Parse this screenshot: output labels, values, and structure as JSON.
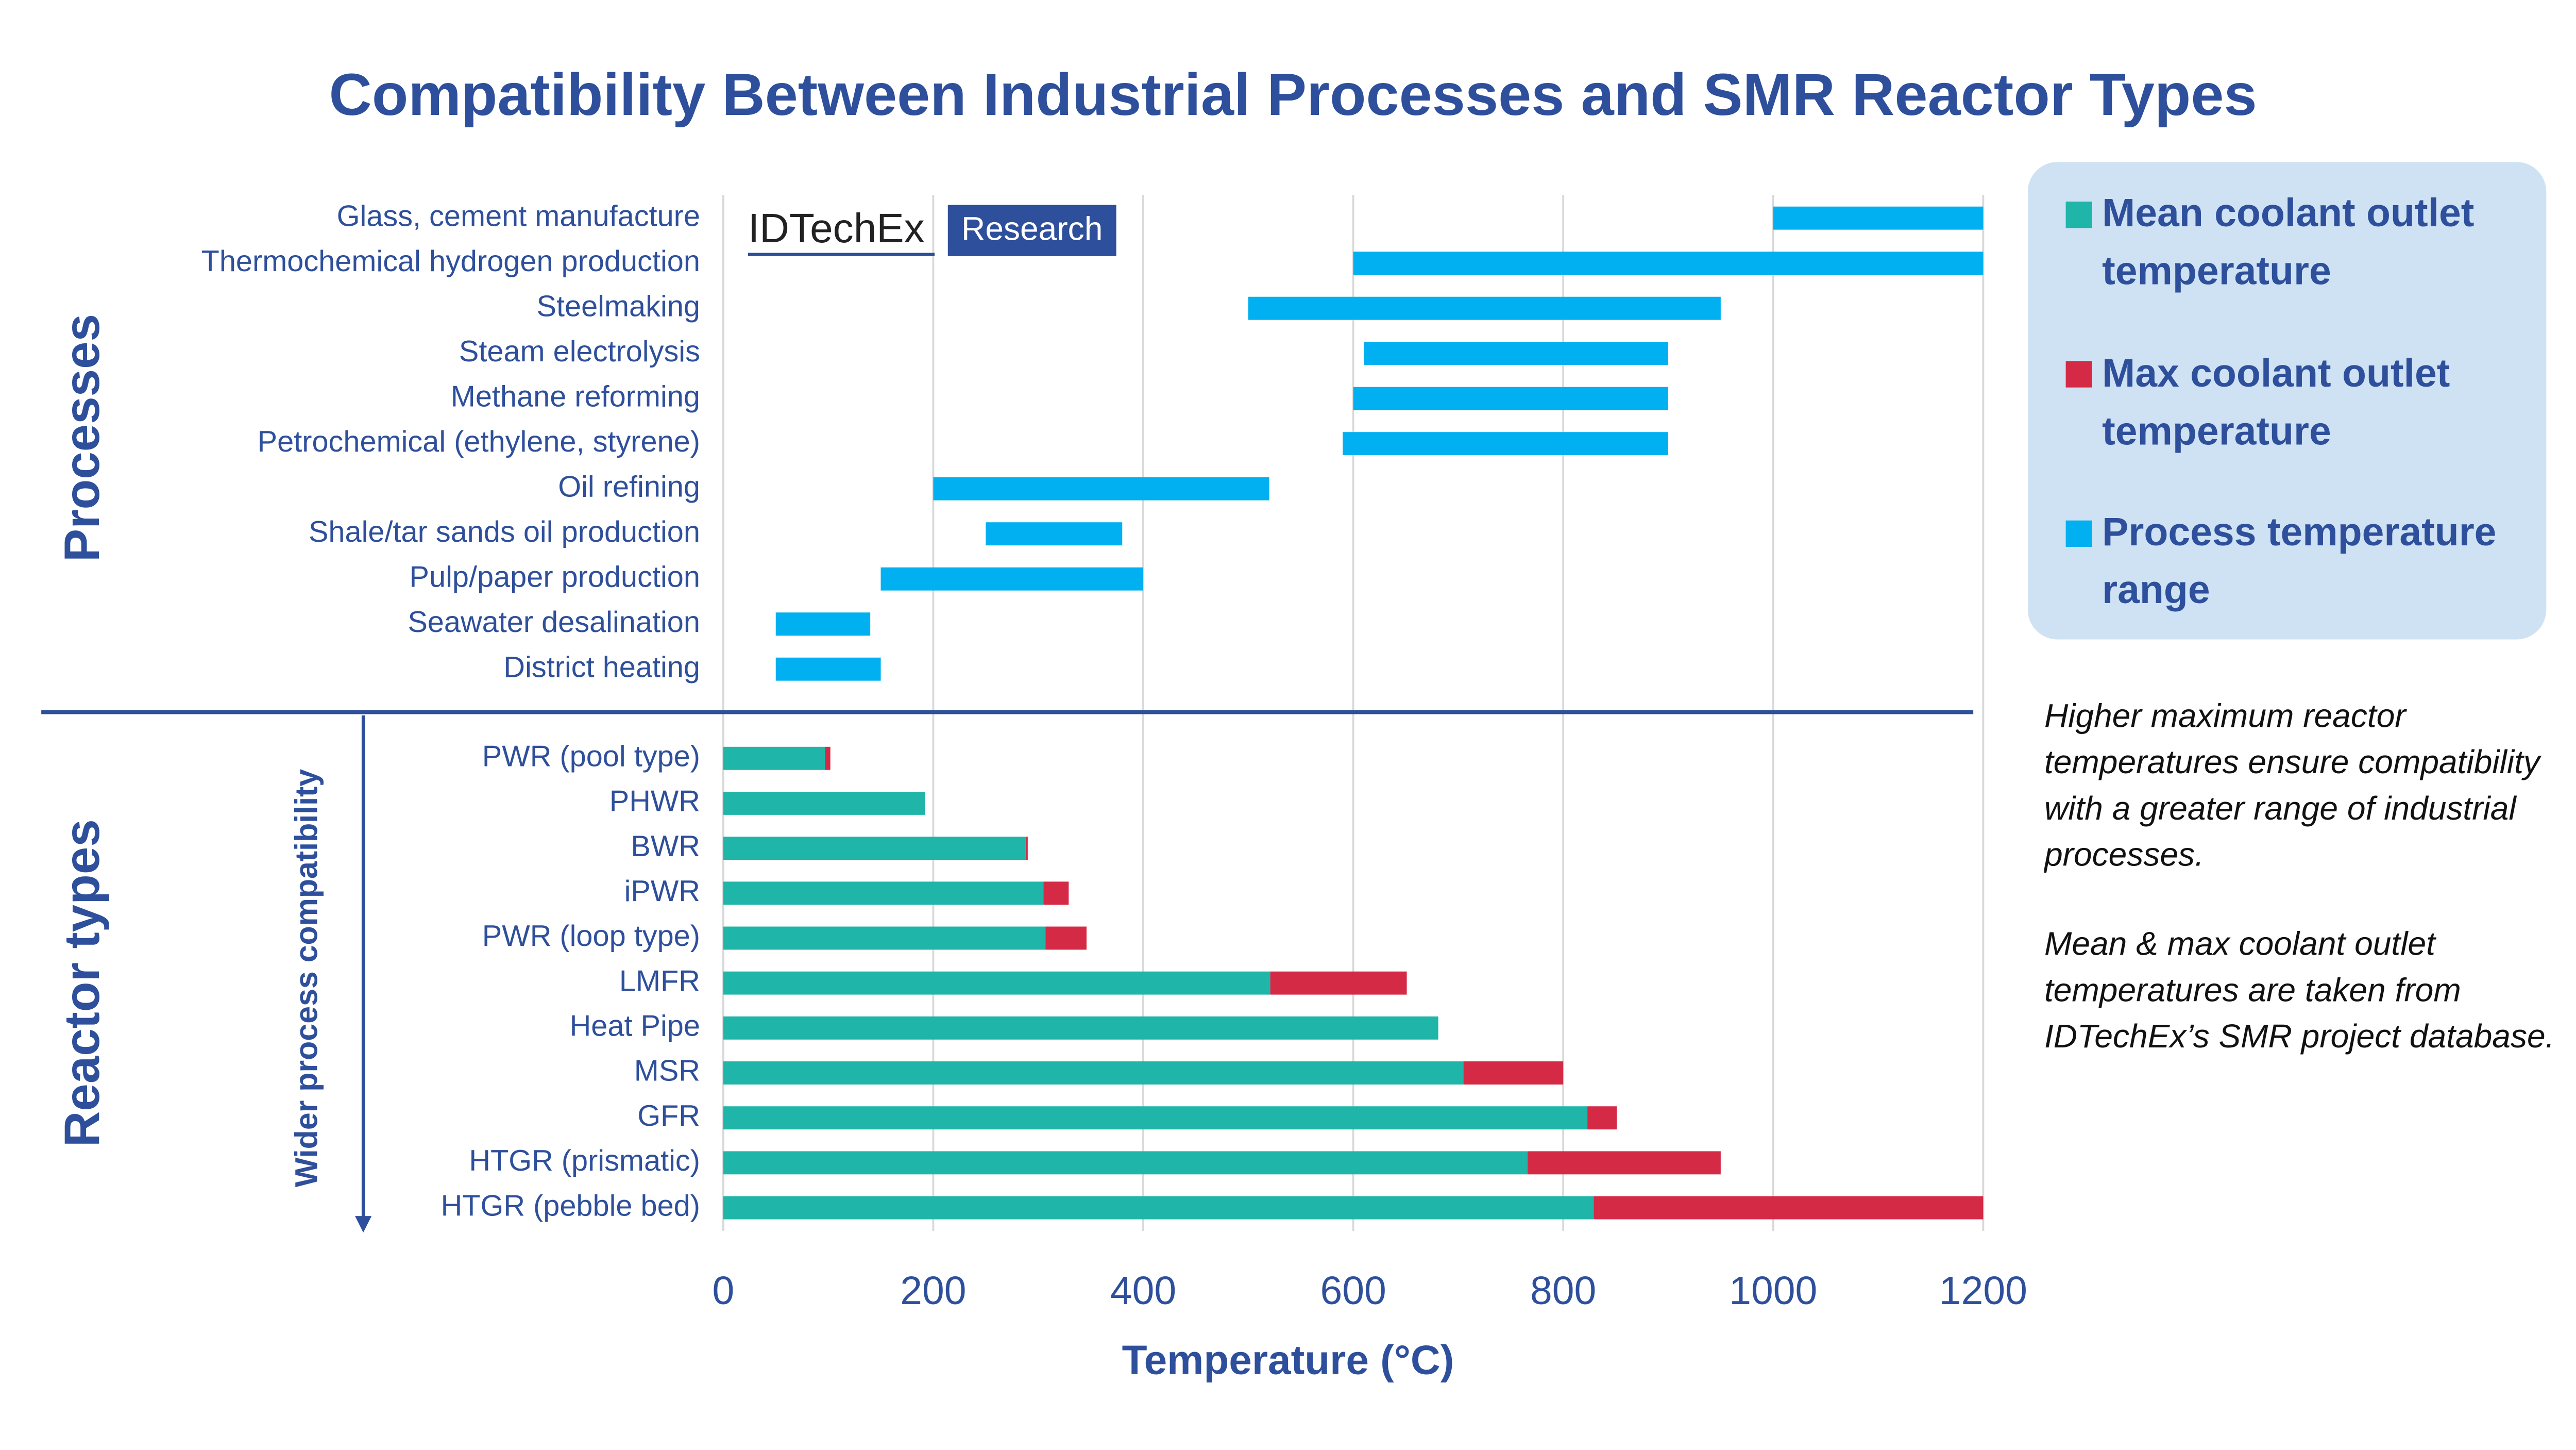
{
  "chart_data": {
    "type": "bar",
    "orientation": "horizontal",
    "title": "Compatibility Between Industrial Processes and SMR Reactor Types",
    "xlabel": "Temperature (°C)",
    "xlim": [
      0,
      1200
    ],
    "xticks": [
      0,
      200,
      400,
      600,
      800,
      1000,
      1200
    ],
    "grid": true,
    "logo": [
      "IDTechEx",
      "Research"
    ],
    "legend_position": "upper right",
    "groups": [
      {
        "name": "Processes",
        "categories": [
          "Glass, cement manufacture",
          "Thermochemical hydrogen production",
          "Steelmaking",
          "Steam electrolysis",
          "Methane reforming",
          "Petrochemical (ethylene, styrene)",
          "Oil refining",
          "Shale/tar sands oil production",
          "Pulp/paper production",
          "Seawater desalination",
          "District heating"
        ],
        "series": [
          {
            "name": "Process temperature range",
            "color": "#00b0f0",
            "low": [
              1000,
              600,
              500,
              610,
              600,
              590,
              200,
              250,
              150,
              50,
              50
            ],
            "high": [
              1200,
              1200,
              950,
              900,
              900,
              900,
              520,
              380,
              400,
              140,
              150
            ]
          }
        ]
      },
      {
        "name": "Reactor types",
        "axis_note": "Wider process compatibility",
        "categories": [
          "PWR (pool type)",
          "PHWR",
          "BWR",
          "iPWR",
          "PWR (loop type)",
          "LMFR",
          "Heat Pipe",
          "MSR",
          "GFR",
          "HTGR (prismatic)",
          "HTGR (pebble bed)"
        ],
        "series": [
          {
            "name": "Mean coolant outlet temperature",
            "color": "#1fb5a9",
            "values": [
              97,
              192,
              288,
              305,
              307,
              521,
              681,
              705,
              823,
              766,
              829
            ]
          },
          {
            "name": "Max coolant outlet temperature",
            "color": "#d42a45",
            "values": [
              102,
              null,
              290,
              329,
              346,
              651,
              null,
              800,
              851,
              950,
              1200
            ]
          }
        ]
      }
    ],
    "annotations": [
      "Higher maximum reactor temperatures ensure compatibility with a greater range of industrial processes.",
      "Mean & max coolant outlet temperatures are taken from IDTechEx’s SMR project database."
    ]
  }
}
